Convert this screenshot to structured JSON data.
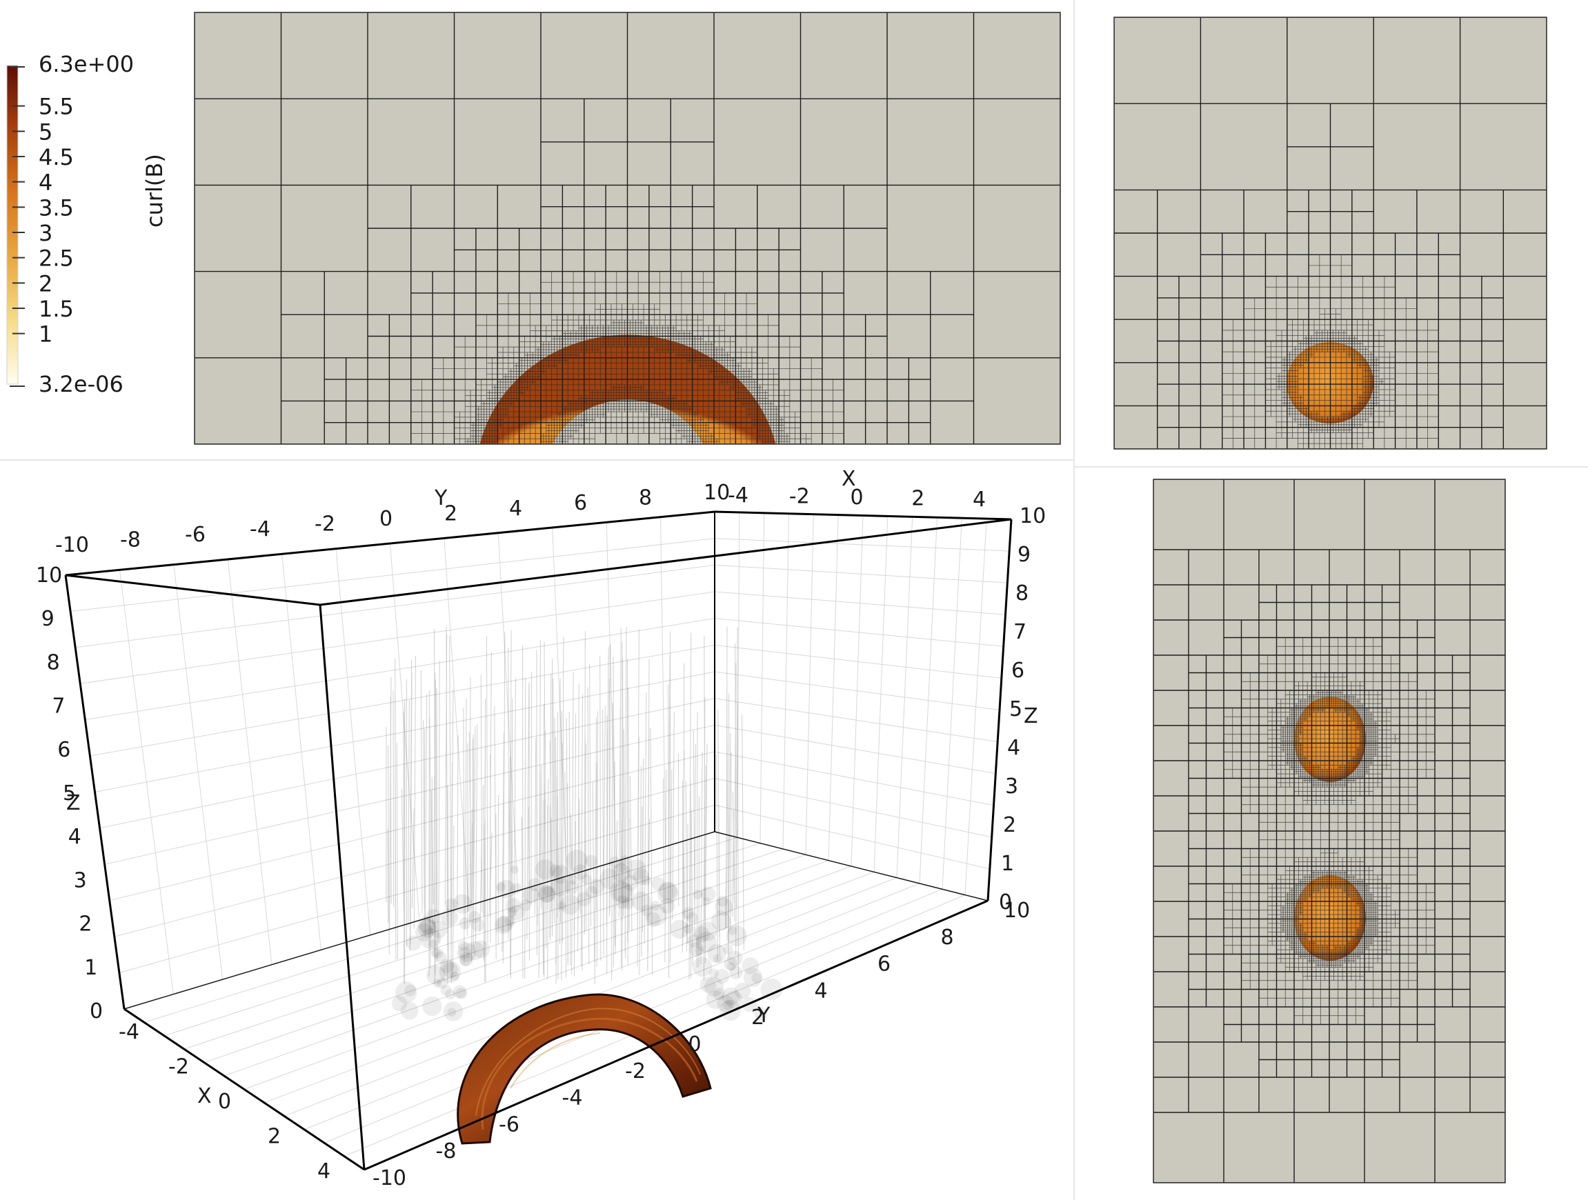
{
  "colorbar": {
    "title": "curl(B)",
    "max_label": "6.3e+00",
    "min_label": "3.2e-06",
    "ticks": [
      "5.5",
      "5",
      "4.5",
      "4",
      "3.5",
      "3",
      "2.5",
      "2",
      "1.5",
      "1"
    ],
    "colors": [
      "#fffdf0",
      "#f5dc86",
      "#e9a73f",
      "#d7761c",
      "#a9410b",
      "#5e0d06"
    ]
  },
  "colors": {
    "mesh_fill": "#cbc8bd",
    "mesh_line": "#1c1c1c",
    "blob_light": "#f0a63a",
    "blob_mid": "#d27519",
    "blob_dark": "#8c3409",
    "blob_3d_dark": "#4a1505",
    "blob_3d_mid": "#8a3a10"
  },
  "view3d": {
    "axis_x_label": "X",
    "axis_y_label": "Y",
    "axis_z_label": "Z",
    "top_y_ticks": [
      "-10",
      "-8",
      "-6",
      "-4",
      "-2",
      "0",
      "2",
      "4",
      "6",
      "8",
      "10"
    ],
    "top_x_ticks": [
      "-4",
      "-2",
      "0",
      "2",
      "4"
    ],
    "left_z_ticks": [
      "10",
      "9",
      "8",
      "7",
      "6",
      "5",
      "4",
      "3",
      "2",
      "1",
      "0"
    ],
    "right_z_ticks": [
      "10",
      "9",
      "8",
      "7",
      "6",
      "5",
      "4",
      "3",
      "2",
      "1",
      "0"
    ],
    "bottom_x_ticks": [
      "-4",
      "-2",
      "0",
      "2",
      "4"
    ],
    "bottom_y_ticks": [
      "-10",
      "-8",
      "-6",
      "-4",
      "-2",
      "0",
      "2",
      "4",
      "6",
      "8",
      "10"
    ]
  }
}
